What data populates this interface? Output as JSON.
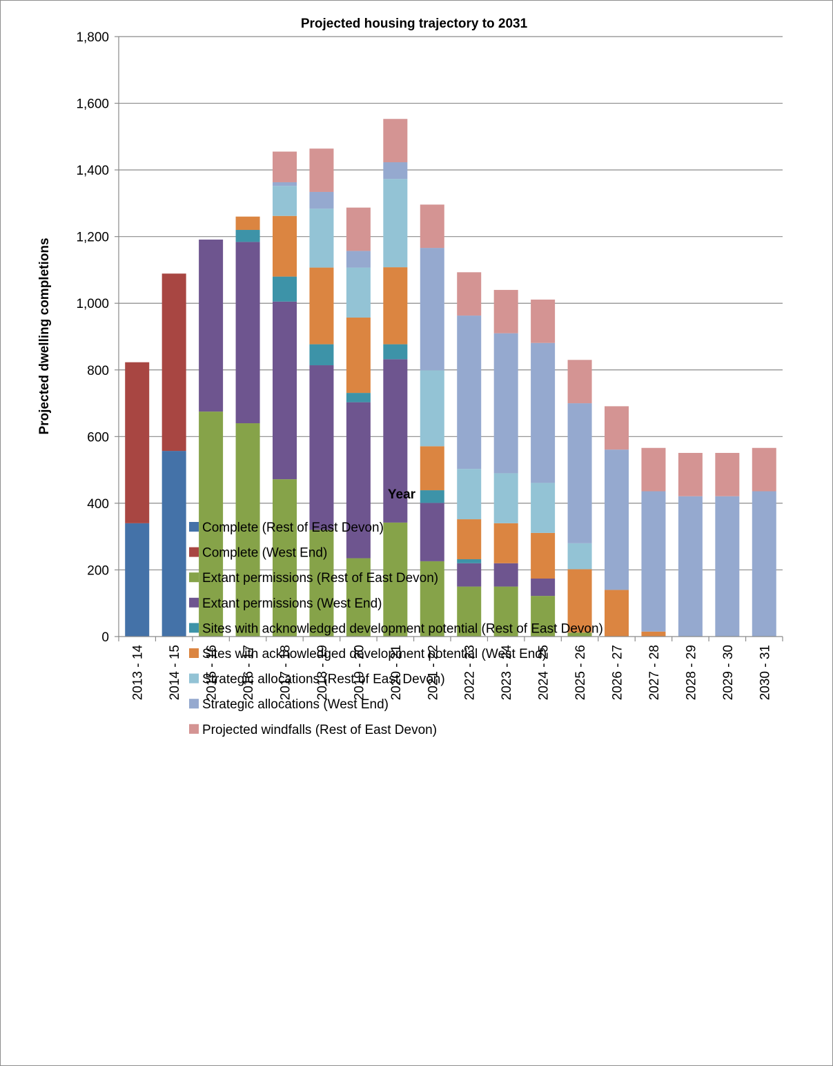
{
  "chart_data": {
    "type": "bar",
    "stacked": true,
    "title": "Projected housing trajectory to 2031",
    "xlabel": "Year",
    "ylabel": "Projected dwelling completions",
    "ylim": [
      0,
      1800
    ],
    "yticks": [
      0,
      200,
      400,
      600,
      800,
      1000,
      1200,
      1400,
      1600,
      1800
    ],
    "ytick_labels": [
      "0",
      "200",
      "400",
      "600",
      "800",
      "1,000",
      "1,200",
      "1,400",
      "1,600",
      "1,800"
    ],
    "grid": true,
    "legend_position": "bottom",
    "categories": [
      "2013 - 14",
      "2014 - 15",
      "2015 - 16",
      "2016 - 17",
      "2017 - 18",
      "2018 - 19",
      "2019 - 20",
      "2020 - 21",
      "2021 - 22",
      "2022 - 23",
      "2023 - 24",
      "2024 - 25",
      "2025 - 26",
      "2026 - 27",
      "2027 - 28",
      "2028 - 29",
      "2029 - 30",
      "2030 - 31"
    ],
    "series": [
      {
        "name": "Complete (Rest of East Devon)",
        "color": "#4472a8",
        "values": [
          340,
          557,
          0,
          0,
          0,
          0,
          0,
          0,
          0,
          0,
          0,
          0,
          0,
          0,
          0,
          0,
          0,
          0
        ]
      },
      {
        "name": "Complete (West End)",
        "color": "#a84642",
        "values": [
          483,
          532,
          0,
          0,
          0,
          0,
          0,
          0,
          0,
          0,
          0,
          0,
          0,
          0,
          0,
          0,
          0,
          0
        ]
      },
      {
        "name": "Extant permissions (Rest of East Devon)",
        "color": "#86a349",
        "values": [
          0,
          0,
          675,
          640,
          472,
          320,
          235,
          342,
          226,
          150,
          150,
          122,
          12,
          0,
          0,
          0,
          0,
          0
        ]
      },
      {
        "name": "Extant permissions (West End)",
        "color": "#6e558f",
        "values": [
          0,
          0,
          516,
          544,
          533,
          494,
          468,
          490,
          175,
          70,
          70,
          52,
          0,
          0,
          0,
          0,
          0,
          0
        ]
      },
      {
        "name": "Sites with acknowledged development potential (Rest of East Devon)",
        "color": "#3d93a8",
        "values": [
          0,
          0,
          0,
          36,
          75,
          63,
          28,
          45,
          38,
          12,
          0,
          0,
          0,
          0,
          0,
          0,
          0,
          0
        ]
      },
      {
        "name": "Sites with acknowledged development potential (West End)",
        "color": "#db8541",
        "values": [
          0,
          0,
          0,
          40,
          182,
          230,
          226,
          231,
          132,
          120,
          120,
          137,
          190,
          140,
          15,
          0,
          0,
          0
        ]
      },
      {
        "name": "Strategic allocations (Rest of East Devon)",
        "color": "#93c3d5",
        "values": [
          0,
          0,
          0,
          0,
          90,
          177,
          150,
          265,
          228,
          151,
          150,
          150,
          78,
          0,
          0,
          0,
          0,
          0
        ]
      },
      {
        "name": "Strategic allocations (West End)",
        "color": "#95a9cf",
        "values": [
          0,
          0,
          0,
          0,
          11,
          50,
          50,
          50,
          367,
          460,
          420,
          420,
          420,
          421,
          421,
          421,
          421,
          436
        ]
      },
      {
        "name": "Projected windfalls (Rest of East Devon)",
        "color": "#d49493",
        "values": [
          0,
          0,
          0,
          0,
          92,
          130,
          130,
          130,
          130,
          130,
          130,
          130,
          130,
          130,
          130,
          130,
          130,
          130
        ]
      }
    ]
  }
}
